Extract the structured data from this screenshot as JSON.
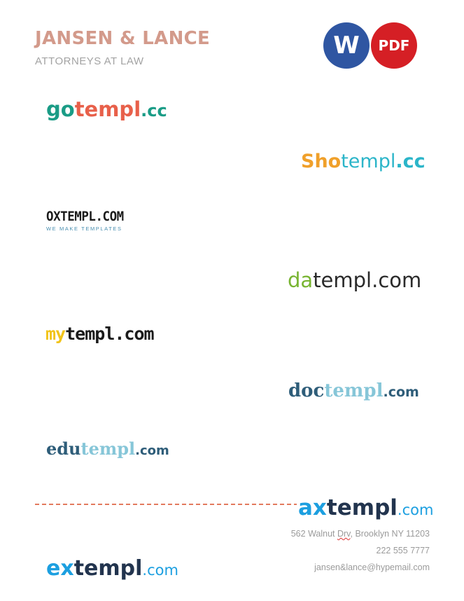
{
  "header": {
    "firm_name": "JANSEN & LANCE",
    "subtitle": "ATTORNEYS AT LAW",
    "colors": {
      "firm_name": "#d39a8b",
      "subtitle": "#a3a3a3"
    }
  },
  "badges": {
    "word": {
      "label": "W",
      "color": "#2f56a2"
    },
    "pdf": {
      "label": "PDF",
      "color": "#d51f25"
    }
  },
  "logos": {
    "gotempl": {
      "part1": "go",
      "part2": "templ",
      "part3": ".cc",
      "colors": [
        "#1a9c86",
        "#e8604a",
        "#1a9c86"
      ]
    },
    "shotempl": {
      "part1": "Sho",
      "part2": "templ",
      "part3": ".cc",
      "colors": [
        "#f0a02a",
        "#2bb5c9",
        "#2bb5c9"
      ]
    },
    "oxtempl": {
      "main": "OXTEMPL.COM",
      "tagline": "WE MAKE TEMPLATES",
      "colors": [
        "#1b1b1b",
        "#4a8fb0"
      ]
    },
    "datempl": {
      "part1": "da",
      "part2": "templ.com",
      "colors": [
        "#78b431",
        "#2a2a2a"
      ]
    },
    "mytempl": {
      "part1": "my",
      "part2": "templ.com",
      "colors": [
        "#f2c41a",
        "#1b1b1b"
      ]
    },
    "doctempl": {
      "part1": "doc",
      "part2": "templ",
      "part3": ".com",
      "colors": [
        "#2e5d79",
        "#86c6d8",
        "#2e5d79"
      ]
    },
    "edutempl": {
      "part1": "edu",
      "part2": "templ",
      "part3": ".com",
      "colors": [
        "#2e5d79",
        "#86c6d8",
        "#2e5d79"
      ]
    },
    "axtempl": {
      "part1": "ax",
      "part2": "templ",
      "part3": ".com",
      "colors": [
        "#1c9fe0",
        "#22344e",
        "#1c9fe0"
      ]
    },
    "extempl": {
      "part1": "ex",
      "part2": "templ",
      "part3": ".com",
      "colors": [
        "#1c9fe0",
        "#22344e",
        "#1c9fe0"
      ]
    }
  },
  "footer": {
    "address_part1": "562 Walnut ",
    "address_misspelled": "Drv",
    "address_part2": ", Brooklyn NY 11203",
    "phone": "222 555 7777",
    "email": "jansen&lance@hypemail.com",
    "divider_color": "#e27a5e",
    "text_color": "#9b9b9b"
  }
}
